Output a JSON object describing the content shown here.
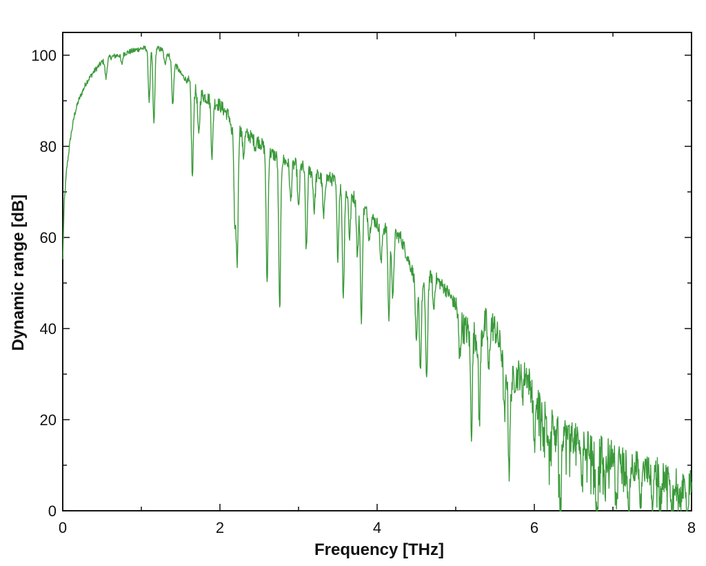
{
  "chart_data": {
    "type": "line",
    "title": "",
    "xlabel": "Frequency [THz]",
    "ylabel": "Dynamic range [dB]",
    "xlim": [
      0,
      8
    ],
    "ylim": [
      0,
      105
    ],
    "xticks": [
      0,
      2,
      4,
      6,
      8
    ],
    "yticks": [
      0,
      20,
      40,
      60,
      80,
      100
    ],
    "grid": false,
    "legend": "none",
    "line_color": "#3a9a3a",
    "series": [
      {
        "x": [
          0.0,
          0.02,
          0.05,
          0.1,
          0.15,
          0.2,
          0.3,
          0.4,
          0.5,
          0.6,
          0.7,
          0.8,
          0.9,
          1.0,
          1.1,
          1.2,
          1.3,
          1.4,
          1.5,
          1.6,
          1.7,
          1.8,
          1.9,
          2.0,
          2.1,
          2.2,
          2.3,
          2.4,
          2.5,
          2.6,
          2.7,
          2.8,
          2.9,
          3.0,
          3.1,
          3.2,
          3.3,
          3.4,
          3.5,
          3.6,
          3.7,
          3.8,
          3.9,
          4.0,
          4.1,
          4.2,
          4.3,
          4.4,
          4.5,
          4.6,
          4.7,
          4.8,
          4.9,
          5.0,
          5.1,
          5.2,
          5.3,
          5.4,
          5.5,
          5.6,
          5.7,
          5.8,
          5.9,
          6.0,
          6.1,
          6.2,
          6.3,
          6.4,
          6.5,
          6.6,
          6.7,
          6.8,
          6.9,
          7.0,
          7.1,
          7.2,
          7.3,
          7.4,
          7.5,
          7.6,
          7.7,
          7.8,
          7.9,
          8.0
        ],
        "y": [
          55,
          68,
          75,
          82,
          87,
          90,
          94,
          96.5,
          98.5,
          99.5,
          100,
          100.5,
          101,
          101.5,
          101.5,
          101.5,
          101,
          99,
          96,
          94,
          92,
          91,
          90,
          89,
          87,
          85,
          83,
          82,
          81,
          79,
          78,
          77,
          76,
          76,
          75,
          74,
          73,
          73,
          72,
          70,
          69,
          67,
          65,
          63,
          62,
          61,
          60,
          55,
          50,
          49,
          52,
          50,
          48,
          45,
          40,
          39,
          38,
          42,
          40,
          34,
          28,
          30,
          30,
          25,
          22,
          20,
          18,
          17,
          16,
          15,
          14,
          13,
          13,
          12,
          11,
          10,
          10,
          9,
          9,
          8,
          7,
          7,
          6,
          7
        ]
      }
    ],
    "absorption_dips": [
      [
        0.55,
        95
      ],
      [
        0.75,
        98
      ],
      [
        1.1,
        90
      ],
      [
        1.16,
        85
      ],
      [
        1.3,
        98
      ],
      [
        1.4,
        89
      ],
      [
        1.65,
        73
      ],
      [
        1.73,
        82
      ],
      [
        1.9,
        78
      ],
      [
        2.15,
        83
      ],
      [
        2.19,
        62
      ],
      [
        2.22,
        55
      ],
      [
        2.3,
        78
      ],
      [
        2.45,
        80
      ],
      [
        2.6,
        50
      ],
      [
        2.76,
        44
      ],
      [
        2.9,
        68
      ],
      [
        3.0,
        66
      ],
      [
        3.1,
        57
      ],
      [
        3.2,
        66
      ],
      [
        3.32,
        64
      ],
      [
        3.5,
        56
      ],
      [
        3.57,
        47
      ],
      [
        3.65,
        60
      ],
      [
        3.75,
        56
      ],
      [
        3.8,
        41
      ],
      [
        3.9,
        60
      ],
      [
        4.05,
        54
      ],
      [
        4.15,
        42
      ],
      [
        4.2,
        46
      ],
      [
        4.5,
        36
      ],
      [
        4.55,
        31
      ],
      [
        4.63,
        28
      ],
      [
        4.72,
        44
      ],
      [
        5.05,
        33
      ],
      [
        5.2,
        18
      ],
      [
        5.3,
        20
      ],
      [
        5.42,
        30
      ],
      [
        5.62,
        20
      ],
      [
        5.68,
        9
      ],
      [
        5.85,
        26
      ],
      [
        6.0,
        15
      ],
      [
        6.2,
        12
      ],
      [
        6.33,
        0
      ],
      [
        6.6,
        7
      ],
      [
        6.8,
        0
      ],
      [
        6.9,
        4
      ],
      [
        7.05,
        2
      ],
      [
        7.2,
        0
      ],
      [
        7.35,
        0
      ],
      [
        7.5,
        0
      ],
      [
        7.6,
        2
      ],
      [
        7.75,
        0
      ],
      [
        7.85,
        1
      ],
      [
        7.95,
        0
      ]
    ]
  }
}
